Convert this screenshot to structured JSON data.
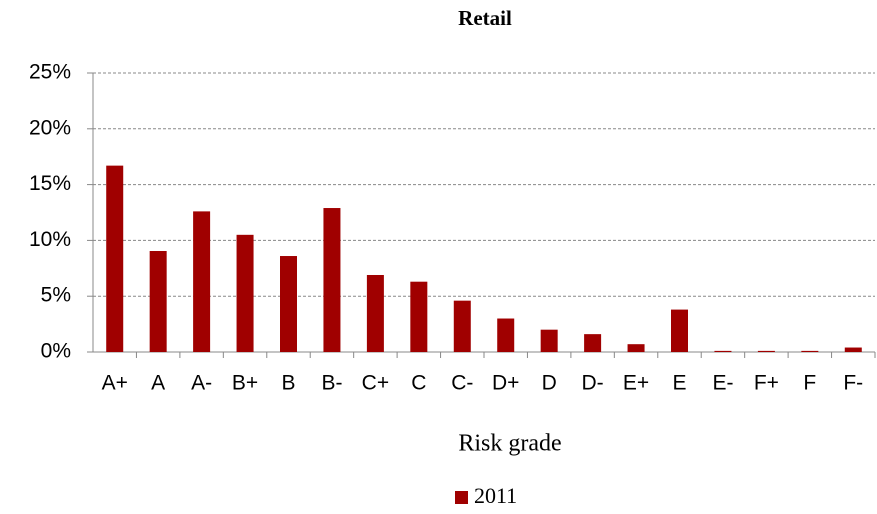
{
  "chart_data": {
    "type": "bar",
    "title": "Retail",
    "x_label": "Risk grade",
    "categories": [
      "A+",
      "A",
      "A-",
      "B+",
      "B",
      "B-",
      "C+",
      "C",
      "C-",
      "D+",
      "D",
      "D-",
      "E+",
      "E",
      "E-",
      "F+",
      "F",
      "F-"
    ],
    "series": [
      {
        "name": "2011",
        "color": "#a00000",
        "values": [
          16.7,
          9.05,
          12.6,
          10.5,
          8.6,
          12.9,
          6.9,
          6.3,
          4.6,
          3.0,
          2.0,
          1.6,
          0.7,
          3.8,
          0.1,
          0.1,
          0.1,
          0.4
        ]
      }
    ],
    "ylim": [
      0,
      25
    ],
    "yticks": [
      {
        "value": 0,
        "label": "0%"
      },
      {
        "value": 5,
        "label": "5%"
      },
      {
        "value": 10,
        "label": "10%"
      },
      {
        "value": 15,
        "label": "15%"
      },
      {
        "value": 20,
        "label": "20%"
      },
      {
        "value": 25,
        "label": "25%"
      }
    ],
    "grid": true,
    "legend": "bottom"
  }
}
